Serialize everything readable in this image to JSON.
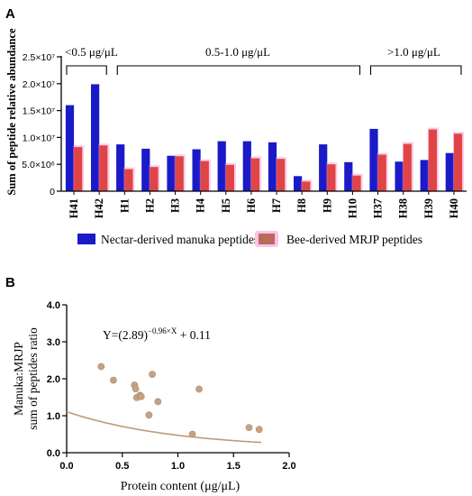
{
  "panel_a": {
    "letter": "A",
    "group_labels": [
      "<0.5 μg/μL",
      "0.5-1.0 μg/μL",
      ">1.0 μg/μL"
    ],
    "legend": [
      "Nectar-derived manuka peptides",
      "Bee-derived MRJP peptides"
    ]
  },
  "panel_b": {
    "letter": "B",
    "equation": {
      "prefix": "Y=(2.89)",
      "exponent": "−0.96×X",
      "suffix": " + 0.11"
    }
  },
  "colors": {
    "manuka": "#1a1ac8",
    "mrjp": "#e04545",
    "mrjp_glow": "#ff8fd0",
    "scatter": "#c5a284",
    "fit": "#c09a74"
  },
  "chart_data": [
    {
      "type": "bar",
      "title": "",
      "xlabel": "",
      "ylabel": "Sum of peptide relative abundance",
      "ylim": [
        0,
        25000000
      ],
      "yticks": [
        0,
        5000000,
        10000000,
        15000000,
        20000000,
        25000000
      ],
      "yticklabels": [
        "0",
        "5.0×10⁶",
        "1.0×10⁷",
        "1.5×10⁷",
        "2.0×10⁷",
        "2.5×10⁷"
      ],
      "categories": [
        "H41",
        "H42",
        "H1",
        "H2",
        "H3",
        "H4",
        "H5",
        "H6",
        "H7",
        "H8",
        "H9",
        "H10",
        "H37",
        "H38",
        "H39",
        "H40"
      ],
      "series": [
        {
          "name": "Nectar-derived manuka peptides",
          "values": [
            16000000,
            19900000,
            8700000,
            7900000,
            6600000,
            7800000,
            9300000,
            9300000,
            9100000,
            2800000,
            8700000,
            5400000,
            11600000,
            5500000,
            5800000,
            7100000
          ]
        },
        {
          "name": "Bee-derived MRJP peptides",
          "values": [
            8200000,
            8500000,
            4100000,
            4500000,
            6500000,
            5600000,
            4900000,
            6100000,
            6000000,
            1800000,
            5000000,
            2900000,
            6800000,
            8800000,
            11500000,
            10700000
          ]
        }
      ],
      "groups": [
        {
          "label": "<0.5 μg/μL",
          "from": "H41",
          "to": "H42"
        },
        {
          "label": "0.5-1.0 μg/μL",
          "from": "H1",
          "to": "H10"
        },
        {
          "label": ">1.0 μg/μL",
          "from": "H37",
          "to": "H40"
        }
      ],
      "legend_position": "bottom"
    },
    {
      "type": "scatter",
      "title": "",
      "xlabel": "Protein content (μg/μL)",
      "ylabel": [
        "Manuka:MRJP",
        "sum of peptides ratio"
      ],
      "xlim": [
        0,
        2.0
      ],
      "ylim": [
        0,
        4.0
      ],
      "xticks": [
        "0.0",
        "0.5",
        "1.0",
        "1.5",
        "2.0"
      ],
      "yticks": [
        "0.0",
        "1.0",
        "2.0",
        "3.0",
        "4.0"
      ],
      "points": [
        {
          "x": 0.31,
          "y": 2.33
        },
        {
          "x": 0.42,
          "y": 1.96
        },
        {
          "x": 0.61,
          "y": 1.83
        },
        {
          "x": 0.62,
          "y": 1.73
        },
        {
          "x": 0.63,
          "y": 1.49
        },
        {
          "x": 0.66,
          "y": 1.55
        },
        {
          "x": 0.67,
          "y": 1.52
        },
        {
          "x": 0.74,
          "y": 1.02
        },
        {
          "x": 0.77,
          "y": 2.12
        },
        {
          "x": 0.82,
          "y": 1.38
        },
        {
          "x": 1.13,
          "y": 0.5
        },
        {
          "x": 1.19,
          "y": 1.72
        },
        {
          "x": 1.64,
          "y": 0.68
        },
        {
          "x": 1.73,
          "y": 0.63
        }
      ],
      "fit": {
        "equation": "Y=(2.89)^(−0.96×X) + 0.11",
        "a": 2.89,
        "b": -0.96,
        "c": 0.11,
        "x_range": [
          0,
          1.75
        ]
      }
    }
  ]
}
